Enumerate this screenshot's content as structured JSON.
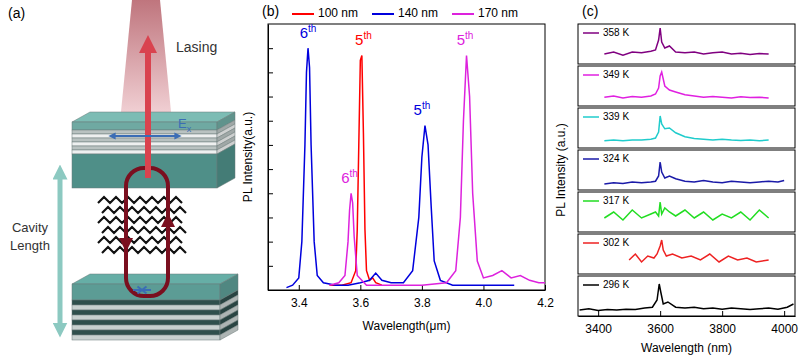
{
  "diagram": {
    "panel_label": "(a)",
    "lasing": "Lasing",
    "field": "E",
    "field_subscript": "x",
    "cavity_length": [
      "Cavity",
      "Length"
    ]
  },
  "chart_data": [
    {
      "type": "line",
      "title": "(b)",
      "xlabel": "Wavelength(μm)",
      "ylabel": "PL Intensity(a.u.)",
      "xlim": [
        3.3,
        4.2
      ],
      "xticks": [
        3.4,
        3.6,
        3.8,
        {
          "value": 4,
          "label": "4.0"
        },
        4.2
      ],
      "ylim": [
        0,
        1.1
      ],
      "yticks": [
        0,
        0.1,
        0.2,
        0.3,
        0.4,
        0.5,
        0.6,
        0.7,
        0.8,
        0.9,
        1.0
      ],
      "tick_labels": "x",
      "legend": "top",
      "series": [
        {
          "name": "100 nm",
          "color": "#ff0000",
          "x": [
            3.5,
            3.54,
            3.57,
            3.585,
            3.59,
            3.595,
            3.6,
            3.605,
            3.61,
            3.615,
            3.62,
            3.63,
            3.64,
            3.65,
            3.67
          ],
          "values": [
            0.02,
            0.02,
            0.03,
            0.08,
            0.25,
            0.6,
            0.95,
            0.97,
            0.65,
            0.25,
            0.08,
            0.04,
            0.05,
            0.03,
            0.02
          ]
        },
        {
          "name": "140 nm",
          "color": "#0000dd",
          "x": [
            3.36,
            3.38,
            3.4,
            3.41,
            3.42,
            3.425,
            3.43,
            3.435,
            3.44,
            3.45,
            3.46,
            3.48,
            3.52,
            3.56,
            3.6,
            3.63,
            3.65,
            3.67,
            3.7,
            3.74,
            3.77,
            3.79,
            3.8,
            3.81,
            3.82,
            3.83,
            3.84,
            3.86,
            3.9,
            3.95,
            4.0,
            4.05,
            4.1
          ],
          "values": [
            0.01,
            0.02,
            0.05,
            0.2,
            0.6,
            0.9,
            1.0,
            0.92,
            0.6,
            0.2,
            0.06,
            0.03,
            0.02,
            0.02,
            0.03,
            0.04,
            0.07,
            0.04,
            0.03,
            0.03,
            0.08,
            0.3,
            0.55,
            0.68,
            0.6,
            0.35,
            0.12,
            0.04,
            0.02,
            0.02,
            0.02,
            0.02,
            0.02
          ]
        },
        {
          "name": "170 nm",
          "color": "#dd22dd",
          "x": [
            3.5,
            3.53,
            3.55,
            3.56,
            3.565,
            3.57,
            3.575,
            3.58,
            3.59,
            3.62,
            3.7,
            3.8,
            3.88,
            3.91,
            3.925,
            3.935,
            3.945,
            3.955,
            3.965,
            3.98,
            4.0,
            4.03,
            4.06,
            4.09,
            4.12,
            4.15,
            4.18,
            4.2
          ],
          "values": [
            0.02,
            0.03,
            0.06,
            0.2,
            0.33,
            0.4,
            0.36,
            0.22,
            0.06,
            0.02,
            0.02,
            0.02,
            0.03,
            0.08,
            0.3,
            0.7,
            0.97,
            0.8,
            0.4,
            0.12,
            0.05,
            0.06,
            0.08,
            0.05,
            0.06,
            0.04,
            0.03,
            0.03
          ]
        }
      ],
      "annotations": [
        {
          "text": "6th",
          "x": 3.43,
          "y": 1.03,
          "color": "#0000dd"
        },
        {
          "text": "5th",
          "x": 3.61,
          "y": 1.0,
          "color": "#ff0000"
        },
        {
          "text": "6th",
          "x": 3.565,
          "y": 0.43,
          "color": "#dd22dd"
        },
        {
          "text": "5th",
          "x": 3.8,
          "y": 0.71,
          "color": "#0000dd"
        },
        {
          "text": "5th",
          "x": 3.94,
          "y": 1.0,
          "color": "#dd22dd"
        }
      ]
    },
    {
      "type": "line",
      "title": "(c)",
      "xlabel": "Wavelength (nm)",
      "ylabel": "PL Intensity (a.u.)",
      "xlim": [
        3335,
        4035
      ],
      "xticks": [
        3400,
        3600,
        3800,
        4000
      ],
      "ylim": [
        0,
        1
      ],
      "tick_labels": "x",
      "legend": "upper left",
      "panels": [
        {
          "series": [
            {
              "name": "358 K",
              "color": "#800080",
              "x": [
                3420,
                3450,
                3480,
                3510,
                3540,
                3570,
                3585,
                3595,
                3600,
                3605,
                3615,
                3630,
                3650,
                3680,
                3710,
                3740,
                3770,
                3800,
                3830,
                3860,
                3890,
                3920,
                3950
              ],
              "values": [
                0.25,
                0.3,
                0.22,
                0.3,
                0.28,
                0.32,
                0.35,
                0.6,
                0.9,
                0.55,
                0.4,
                0.45,
                0.3,
                0.28,
                0.3,
                0.25,
                0.28,
                0.3,
                0.25,
                0.27,
                0.24,
                0.26,
                0.25
              ]
            }
          ]
        },
        {
          "series": [
            {
              "name": "349 K",
              "color": "#e020e0",
              "x": [
                3420,
                3450,
                3480,
                3510,
                3540,
                3570,
                3585,
                3595,
                3600,
                3605,
                3615,
                3630,
                3650,
                3680,
                3710,
                3740,
                3770,
                3800,
                3830,
                3860,
                3890,
                3920,
                3950
              ],
              "values": [
                0.22,
                0.25,
                0.2,
                0.24,
                0.22,
                0.25,
                0.3,
                0.45,
                0.75,
                0.85,
                0.5,
                0.4,
                0.35,
                0.28,
                0.25,
                0.22,
                0.24,
                0.22,
                0.2,
                0.23,
                0.21,
                0.22,
                0.2
              ]
            }
          ]
        },
        {
          "series": [
            {
              "name": "339 K",
              "color": "#20cccc",
              "x": [
                3420,
                3450,
                3480,
                3510,
                3540,
                3570,
                3585,
                3595,
                3600,
                3605,
                3615,
                3630,
                3650,
                3680,
                3710,
                3740,
                3770,
                3800,
                3830,
                3860,
                3890,
                3920,
                3950
              ],
              "values": [
                0.18,
                0.2,
                0.18,
                0.2,
                0.2,
                0.22,
                0.25,
                0.4,
                0.8,
                0.6,
                0.48,
                0.5,
                0.38,
                0.28,
                0.24,
                0.22,
                0.2,
                0.22,
                0.2,
                0.19,
                0.2,
                0.18,
                0.2
              ]
            }
          ]
        },
        {
          "series": [
            {
              "name": "324 K",
              "color": "#1a1aa8",
              "x": [
                3420,
                3450,
                3480,
                3510,
                3540,
                3570,
                3585,
                3595,
                3600,
                3605,
                3615,
                3630,
                3650,
                3680,
                3710,
                3740,
                3770,
                3800,
                3830,
                3860,
                3890,
                3920,
                3950,
                3980,
                4000
              ],
              "values": [
                0.15,
                0.18,
                0.16,
                0.2,
                0.18,
                0.2,
                0.22,
                0.35,
                0.7,
                0.45,
                0.3,
                0.35,
                0.28,
                0.22,
                0.2,
                0.24,
                0.2,
                0.18,
                0.22,
                0.2,
                0.18,
                0.2,
                0.22,
                0.2,
                0.24
              ]
            }
          ]
        },
        {
          "series": [
            {
              "name": "317 K",
              "color": "#22dd22",
              "x": [
                3420,
                3450,
                3480,
                3510,
                3540,
                3570,
                3585,
                3595,
                3600,
                3605,
                3615,
                3630,
                3650,
                3680,
                3710,
                3740,
                3770,
                3800,
                3830,
                3860,
                3890,
                3920,
                3950
              ],
              "values": [
                0.35,
                0.5,
                0.3,
                0.55,
                0.35,
                0.45,
                0.5,
                0.4,
                0.75,
                0.45,
                0.6,
                0.5,
                0.4,
                0.55,
                0.35,
                0.5,
                0.3,
                0.45,
                0.35,
                0.5,
                0.3,
                0.55,
                0.35
              ]
            }
          ]
        },
        {
          "series": [
            {
              "name": "302 K",
              "color": "#ee2222",
              "x": [
                3500,
                3520,
                3540,
                3560,
                3580,
                3590,
                3600,
                3605,
                3610,
                3620,
                3640,
                3670,
                3700,
                3730,
                3760,
                3790,
                3820,
                3850,
                3880,
                3910,
                3950
              ],
              "values": [
                0.35,
                0.5,
                0.3,
                0.45,
                0.4,
                0.5,
                0.7,
                0.85,
                0.6,
                0.45,
                0.5,
                0.4,
                0.45,
                0.35,
                0.5,
                0.3,
                0.45,
                0.35,
                0.4,
                0.3,
                0.35
              ]
            }
          ]
        },
        {
          "series": [
            {
              "name": "296 K",
              "color": "#000000",
              "x": [
                3340,
                3370,
                3400,
                3430,
                3460,
                3490,
                3520,
                3550,
                3575,
                3590,
                3597,
                3602,
                3610,
                3625,
                3650,
                3680,
                3710,
                3740,
                3770,
                3800,
                3830,
                3860,
                3890,
                3920,
                3950,
                3980,
                4010,
                4030
              ],
              "values": [
                0.15,
                0.18,
                0.14,
                0.16,
                0.15,
                0.17,
                0.16,
                0.2,
                0.22,
                0.4,
                0.8,
                0.6,
                0.3,
                0.35,
                0.22,
                0.2,
                0.22,
                0.18,
                0.2,
                0.17,
                0.2,
                0.18,
                0.16,
                0.18,
                0.2,
                0.17,
                0.22,
                0.3
              ]
            }
          ]
        }
      ]
    }
  ]
}
